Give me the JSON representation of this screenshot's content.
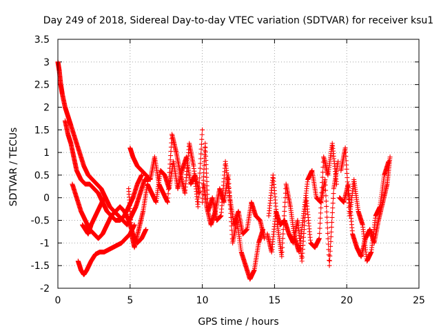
{
  "chart_data": {
    "type": "scatter",
    "title": "Day 249 of 2018, Sidereal Day-to-day VTEC variation (SDTVAR) for receiver ksu1",
    "xlabel": "GPS time / hours",
    "ylabel": "SDTVAR / TECUs",
    "xlim": [
      0,
      25
    ],
    "ylim": [
      -2,
      3.5
    ],
    "xticks": [
      0,
      5,
      10,
      15,
      20,
      25
    ],
    "yticks": [
      -2,
      -1.5,
      -1,
      -0.5,
      0,
      0.5,
      1,
      1.5,
      2,
      2.5,
      3,
      3.5
    ],
    "grid": true,
    "marker": "+",
    "color": "#ff0000",
    "series": [
      {
        "name": "SDTVAR",
        "segments": [
          {
            "x": [
              0.0,
              0.1,
              0.2,
              0.3,
              0.5,
              0.7,
              0.9,
              1.2,
              1.5,
              1.8,
              2.1,
              2.4,
              2.7,
              3.0,
              3.3,
              3.6,
              3.9,
              4.2,
              4.5,
              4.8,
              5.1,
              5.4,
              5.7,
              6.0,
              6.3
            ],
            "y": [
              3.0,
              2.8,
              2.5,
              2.3,
              2.0,
              1.8,
              1.6,
              1.3,
              1.0,
              0.7,
              0.5,
              0.4,
              0.3,
              0.2,
              0.0,
              -0.2,
              -0.3,
              -0.4,
              -0.5,
              -0.6,
              -0.4,
              -0.2,
              0.1,
              0.4,
              0.4
            ]
          },
          {
            "x": [
              0.5,
              0.7,
              0.9,
              1.1,
              1.3,
              1.6,
              1.9,
              2.2,
              2.5,
              2.8,
              3.1,
              3.4,
              3.7,
              4.0,
              4.3,
              4.6,
              4.9,
              5.2,
              5.5,
              5.8
            ],
            "y": [
              1.7,
              1.4,
              1.2,
              0.9,
              0.6,
              0.4,
              0.3,
              0.3,
              0.2,
              0.1,
              -0.1,
              -0.3,
              -0.4,
              -0.5,
              -0.5,
              -0.4,
              -0.2,
              0.0,
              0.3,
              0.5
            ]
          },
          {
            "x": [
              1.0,
              1.3,
              1.6,
              1.9,
              2.2,
              2.5,
              2.8,
              3.1,
              3.4,
              3.7,
              4.0,
              4.3,
              4.6,
              4.9,
              5.2,
              5.5,
              5.8,
              6.1
            ],
            "y": [
              0.3,
              0.0,
              -0.3,
              -0.5,
              -0.7,
              -0.8,
              -0.9,
              -0.8,
              -0.6,
              -0.4,
              -0.3,
              -0.2,
              -0.3,
              -0.5,
              -0.8,
              -1.0,
              -0.9,
              -0.7
            ]
          },
          {
            "x": [
              1.4,
              1.6,
              1.8,
              2.0,
              2.3,
              2.6,
              2.9,
              3.2,
              3.5,
              3.8,
              4.1,
              4.4,
              4.7,
              5.0,
              5.3
            ],
            "y": [
              -1.4,
              -1.6,
              -1.7,
              -1.6,
              -1.4,
              -1.25,
              -1.2,
              -1.2,
              -1.15,
              -1.1,
              -1.05,
              -1.0,
              -0.9,
              -0.8,
              -0.6
            ]
          },
          {
            "x": [
              1.7,
              1.9,
              2.1,
              2.3,
              2.6,
              2.9,
              3.2
            ],
            "y": [
              -0.6,
              -0.7,
              -0.8,
              -0.6,
              -0.4,
              -0.2,
              0.0
            ]
          },
          {
            "x": [
              4.9,
              5.1,
              5.3,
              5.6,
              5.9,
              6.2,
              6.5,
              6.8,
              7.1,
              7.4,
              7.7,
              8.0,
              8.3,
              8.6,
              8.9,
              9.2,
              9.5,
              9.8
            ],
            "y": [
              0.2,
              -0.8,
              -1.1,
              -0.7,
              -0.3,
              0.3,
              0.1,
              -0.1,
              0.6,
              0.5,
              0.2,
              0.8,
              0.2,
              0.6,
              0.9,
              0.3,
              0.5,
              0.1
            ]
          },
          {
            "x": [
              5.0,
              5.2,
              5.5,
              5.8,
              6.1,
              6.4,
              6.7,
              7.0,
              7.3,
              7.6,
              7.9,
              8.2,
              8.5,
              8.8,
              9.1,
              9.4,
              9.7,
              10.0
            ],
            "y": [
              1.1,
              0.9,
              0.7,
              0.6,
              0.5,
              0.4,
              0.9,
              0.3,
              0.1,
              -0.1,
              1.4,
              1.0,
              0.5,
              0.1,
              1.2,
              0.7,
              -0.2,
              1.5
            ]
          },
          {
            "x": [
              10.0,
              10.2,
              10.4,
              10.7,
              11.0,
              11.3,
              11.6,
              11.9,
              12.2,
              12.5,
              12.8,
              13.1,
              13.4,
              13.7,
              14.0,
              14.3
            ],
            "y": [
              -0.1,
              1.2,
              -0.3,
              0.0,
              -0.5,
              -0.4,
              0.8,
              0.0,
              -0.6,
              -0.3,
              -0.8,
              -0.7,
              -0.1,
              -0.4,
              -0.5,
              -0.9
            ]
          },
          {
            "x": [
              10.1,
              10.3,
              10.6,
              10.9,
              11.2,
              11.5,
              11.8,
              12.1,
              12.4,
              12.7,
              13.0,
              13.3,
              13.6,
              13.9,
              14.2
            ],
            "y": [
              0.3,
              -0.2,
              -0.6,
              -0.3,
              0.2,
              -0.1,
              0.5,
              -1.0,
              -0.5,
              -1.2,
              -1.5,
              -1.8,
              -1.6,
              -1.0,
              -0.7
            ]
          },
          {
            "x": [
              14.5,
              14.8,
              15.1,
              15.4,
              15.7,
              16.0,
              16.3,
              16.6,
              16.9,
              17.2,
              17.5,
              17.8,
              18.1,
              18.4,
              18.7,
              19.0,
              19.3
            ],
            "y": [
              -0.8,
              -1.2,
              -0.3,
              -0.6,
              -0.5,
              -0.8,
              -1.0,
              -0.5,
              -1.4,
              0.0,
              -1.0,
              -1.1,
              -0.9,
              0.9,
              0.5,
              1.2,
              0.3
            ]
          },
          {
            "x": [
              14.6,
              14.9,
              15.2,
              15.5,
              15.8,
              16.1,
              16.4,
              16.7,
              17.0,
              17.3,
              17.6,
              17.9,
              18.2,
              18.5,
              18.8,
              19.1,
              19.4
            ],
            "y": [
              -0.4,
              0.5,
              -0.6,
              -1.3,
              0.3,
              -0.2,
              -0.9,
              -1.2,
              -0.4,
              0.4,
              0.6,
              0.0,
              -0.1,
              0.4,
              -1.5,
              0.2,
              0.8
            ]
          },
          {
            "x": [
              19.5,
              19.8,
              20.1,
              20.4,
              20.7,
              21.0,
              21.3,
              21.6,
              21.9,
              22.2,
              22.5,
              22.8,
              23.0
            ],
            "y": [
              0.0,
              -0.1,
              0.3,
              -0.8,
              -1.1,
              -1.3,
              -0.9,
              -0.7,
              -1.0,
              -0.5,
              -0.1,
              0.3,
              0.9
            ]
          },
          {
            "x": [
              19.6,
              19.9,
              20.2,
              20.5,
              20.8,
              21.1,
              21.4,
              21.7,
              22.0,
              22.3,
              22.6,
              22.9
            ],
            "y": [
              0.6,
              1.1,
              -0.4,
              0.4,
              -0.3,
              -0.6,
              -1.4,
              -1.2,
              -0.4,
              -0.2,
              0.5,
              0.8
            ]
          }
        ]
      }
    ]
  }
}
